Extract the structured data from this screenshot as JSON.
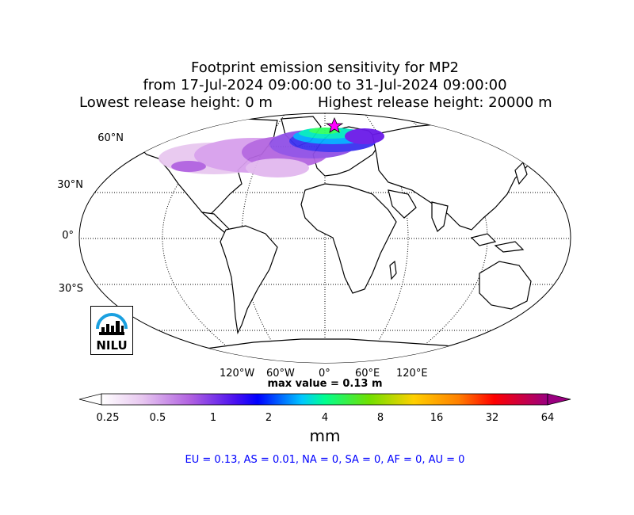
{
  "title": {
    "line1": "Footprint emission sensitivity for MP2",
    "line2": "from 17-Jul-2024 09:00:00 to 31-Jul-2024 09:00:00",
    "line3_left": "Lowest release height: 0 m",
    "line3_right": "Highest release height: 20000 m"
  },
  "map": {
    "projection": "Robinson",
    "lat_labels": [
      "60°N",
      "30°N",
      "0°",
      "30°S"
    ],
    "lon_labels": [
      "120°W",
      "60°W",
      "0°",
      "60°E",
      "120°E"
    ],
    "max_value_text": "max value = 0.13 m",
    "release_marker": "star-icon",
    "logo_text": "NILU"
  },
  "colorbar": {
    "ticks": [
      "0.25",
      "0.5",
      "1",
      "2",
      "4",
      "8",
      "16",
      "32",
      "64"
    ],
    "units": "mm",
    "colors": [
      "#ffffff",
      "#e2b8ef",
      "#b060e0",
      "#6a1ae8",
      "#0000ff",
      "#00c8ff",
      "#00ff80",
      "#80e000",
      "#ffd000",
      "#ff8000",
      "#ff0000",
      "#a00080"
    ]
  },
  "stats": {
    "text": "EU = 0.13,  AS = 0.01,  NA = 0,  SA = 0,  AF = 0,  AU = 0"
  }
}
